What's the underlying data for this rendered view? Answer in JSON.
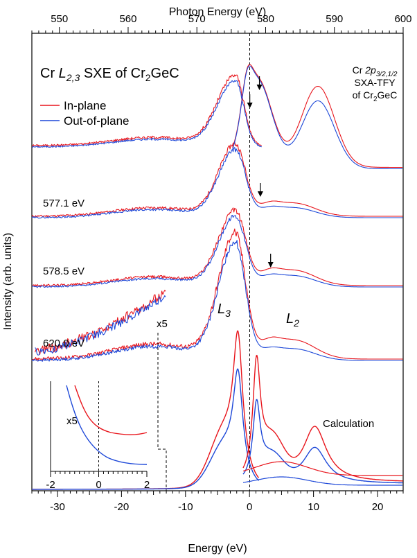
{
  "chart_data": {
    "type": "line",
    "title": "",
    "xlabel": "Energy (eV)",
    "x2label": "Photon Energy (eV)",
    "ylabel": "Intensity (arb. units)",
    "xlim": [
      -34,
      24
    ],
    "x2lim": [
      546,
      600
    ],
    "x_ticks": [
      "-30",
      "-20",
      "-10",
      "0",
      "10",
      "20"
    ],
    "x2_ticks": [
      "550",
      "560",
      "570",
      "580",
      "590",
      "600"
    ],
    "legend": [
      "In-plane",
      "Out-of-plane"
    ],
    "legend_position": "top-left",
    "colors": {
      "in_plane": "#e8141b",
      "out_of_plane": "#1c47d8"
    },
    "panel_title": {
      "pre": "Cr ",
      "edge": "L",
      "edge_sub": "2,3",
      "mid": " SXE of Cr",
      "formula_sub": "2",
      "post": "GeC"
    },
    "tfy_label": {
      "line1_pre": "Cr ",
      "line1_it": "2p",
      "line1_sub": "3/2,1/2",
      "line2": "SXA-TFY",
      "line3_pre": "of Cr",
      "line3_sub": "2",
      "line3_post": "GeC"
    },
    "spectra": [
      {
        "label": "577.1 eV",
        "ratio_in": 0.41,
        "ratio_out": 0.33
      },
      {
        "label": "578.5 eV",
        "ratio_in": 0.46,
        "ratio_out": 0.36
      },
      {
        "label": "620.0 eV",
        "ratio_in": 0.34,
        "ratio_out": 0.22
      }
    ],
    "annotations": {
      "L3": "L",
      "L3_sub": "3",
      "L2": "L",
      "L2_sub": "2",
      "x5": "x5",
      "calculation": "Calculation"
    },
    "tfy_arrows_photon_eV": [
      577.7,
      579.1
    ],
    "sxe_arrows_energy_eV": [
      1.7,
      3.3
    ],
    "inset": {
      "label": "x5",
      "xlim": [
        -2,
        2
      ],
      "x_ticks": [
        "-2",
        "0",
        "2"
      ]
    }
  }
}
